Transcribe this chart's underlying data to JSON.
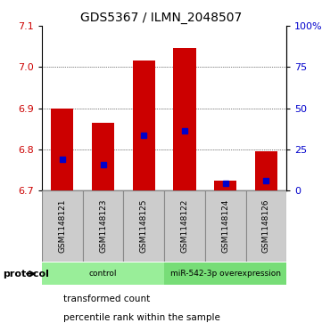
{
  "title": "GDS5367 / ILMN_2048507",
  "samples": [
    "GSM1148121",
    "GSM1148123",
    "GSM1148125",
    "GSM1148122",
    "GSM1148124",
    "GSM1148126"
  ],
  "bar_tops": [
    6.9,
    6.865,
    7.015,
    7.045,
    6.725,
    6.795
  ],
  "bar_bottom": 6.7,
  "blue_markers": [
    6.775,
    6.762,
    6.835,
    6.845,
    6.718,
    6.725
  ],
  "ylim": [
    6.7,
    7.1
  ],
  "yticks_left": [
    6.7,
    6.8,
    6.9,
    7.0,
    7.1
  ],
  "yticks_right_pct": [
    0,
    25,
    50,
    75,
    100
  ],
  "bar_color": "#cc0000",
  "marker_color": "#0000cc",
  "groups": [
    {
      "label": "control",
      "indices": [
        0,
        1,
        2
      ],
      "color": "#99ee99"
    },
    {
      "label": "miR-542-3p overexpression",
      "indices": [
        3,
        4,
        5
      ],
      "color": "#77dd77"
    }
  ],
  "protocol_label": "protocol",
  "legend_items": [
    {
      "color": "#cc0000",
      "label": "transformed count"
    },
    {
      "color": "#0000cc",
      "label": "percentile rank within the sample"
    }
  ],
  "background_color": "#ffffff",
  "bar_width": 0.55,
  "sample_label_bg": "#cccccc",
  "sample_label_border": "#888888"
}
